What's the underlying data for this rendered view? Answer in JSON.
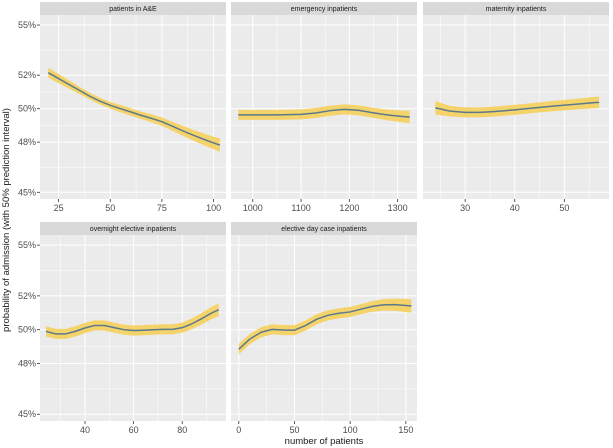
{
  "chart_data": {
    "type": "line",
    "xlabel": "number of patients",
    "ylabel": "probability of admission (with 50% prediction interval)",
    "ylim": [
      0.446,
      0.556
    ],
    "yticks": [
      0.45,
      0.48,
      0.5,
      0.52,
      0.55
    ],
    "ytick_labels": [
      "45%",
      "48%",
      "50%",
      "52%",
      "55%"
    ],
    "line_color": "#5b7a8c",
    "band_color": "#f5d36b",
    "panel_bg": "#ebebeb",
    "strip_bg": "#d9d9d9",
    "grid_color": "#ffffff",
    "panels": [
      {
        "title": "patients in A&E",
        "xlim": [
          16,
          106
        ],
        "xticks": [
          25,
          50,
          75,
          100
        ],
        "x": [
          20,
          25,
          30,
          35,
          40,
          45,
          50,
          55,
          60,
          65,
          70,
          75,
          80,
          85,
          90,
          95,
          100,
          103
        ],
        "y": [
          0.5215,
          0.518,
          0.5145,
          0.511,
          0.5075,
          0.5045,
          0.502,
          0.5,
          0.498,
          0.496,
          0.4942,
          0.4922,
          0.4895,
          0.4868,
          0.4842,
          0.4818,
          0.4795,
          0.4782
        ],
        "lower": [
          0.5185,
          0.5152,
          0.512,
          0.5088,
          0.5055,
          0.5025,
          0.5,
          0.4978,
          0.4958,
          0.4938,
          0.4918,
          0.4897,
          0.4868,
          0.4838,
          0.481,
          0.4783,
          0.4758,
          0.4742
        ],
        "upper": [
          0.5245,
          0.5208,
          0.517,
          0.5132,
          0.5095,
          0.5065,
          0.504,
          0.5022,
          0.5002,
          0.4982,
          0.4966,
          0.4947,
          0.4922,
          0.4898,
          0.4874,
          0.4853,
          0.4832,
          0.4822
        ]
      },
      {
        "title": "emergency inpatients",
        "xlim": [
          955,
          1340
        ],
        "xticks": [
          1000,
          1100,
          1200,
          1300
        ],
        "x": [
          970,
          1000,
          1050,
          1100,
          1130,
          1160,
          1190,
          1220,
          1250,
          1280,
          1310,
          1325
        ],
        "y": [
          0.4963,
          0.4963,
          0.4963,
          0.4966,
          0.4974,
          0.4988,
          0.4996,
          0.499,
          0.4975,
          0.4962,
          0.4953,
          0.495
        ],
        "lower": [
          0.4933,
          0.4933,
          0.4933,
          0.4936,
          0.4944,
          0.4958,
          0.4966,
          0.496,
          0.4945,
          0.493,
          0.4918,
          0.4912
        ],
        "upper": [
          0.4993,
          0.4993,
          0.4993,
          0.4996,
          0.5004,
          0.5018,
          0.5026,
          0.502,
          0.5005,
          0.4994,
          0.4988,
          0.4988
        ]
      },
      {
        "title": "maternity inpatients",
        "xlim": [
          21.5,
          59
        ],
        "xticks": [
          30,
          40,
          50
        ],
        "x": [
          24,
          27,
          30,
          33,
          36,
          40,
          44,
          48,
          52,
          56,
          57
        ],
        "y": [
          0.5005,
          0.4985,
          0.4978,
          0.4978,
          0.4983,
          0.4993,
          0.5005,
          0.5016,
          0.5026,
          0.5036,
          0.5038
        ],
        "lower": [
          0.4965,
          0.4953,
          0.4948,
          0.4948,
          0.4953,
          0.4963,
          0.4975,
          0.4985,
          0.4994,
          0.5002,
          0.5003
        ],
        "upper": [
          0.5045,
          0.5017,
          0.5008,
          0.5008,
          0.5013,
          0.5023,
          0.5035,
          0.5047,
          0.5058,
          0.507,
          0.5073
        ]
      },
      {
        "title": "overnight elective inpatients",
        "xlim": [
          21.5,
          98
        ],
        "xticks": [
          40,
          60,
          80
        ],
        "x": [
          24,
          28,
          32,
          36,
          40,
          44,
          48,
          52,
          56,
          60,
          64,
          68,
          72,
          76,
          80,
          84,
          88,
          92,
          95
        ],
        "y": [
          0.499,
          0.4975,
          0.4975,
          0.499,
          0.501,
          0.5025,
          0.5025,
          0.5012,
          0.5,
          0.4995,
          0.4997,
          0.5,
          0.5002,
          0.5002,
          0.5012,
          0.5035,
          0.5065,
          0.5098,
          0.5118
        ],
        "lower": [
          0.496,
          0.4945,
          0.4945,
          0.496,
          0.498,
          0.4995,
          0.4995,
          0.4982,
          0.497,
          0.4965,
          0.4967,
          0.497,
          0.4972,
          0.4972,
          0.4982,
          0.5003,
          0.5031,
          0.5062,
          0.508
        ],
        "upper": [
          0.502,
          0.5005,
          0.5005,
          0.502,
          0.504,
          0.5055,
          0.5055,
          0.5042,
          0.503,
          0.5025,
          0.5027,
          0.503,
          0.5032,
          0.5032,
          0.5042,
          0.5067,
          0.5099,
          0.5134,
          0.5156
        ]
      },
      {
        "title": "elective day case inpatients",
        "xlim": [
          -7,
          160
        ],
        "xticks": [
          0,
          50,
          100,
          150
        ],
        "x": [
          0,
          10,
          20,
          30,
          40,
          50,
          60,
          70,
          80,
          90,
          100,
          110,
          120,
          130,
          140,
          150,
          155
        ],
        "y": [
          0.4885,
          0.4945,
          0.4985,
          0.5002,
          0.4998,
          0.4997,
          0.5025,
          0.5062,
          0.5085,
          0.5097,
          0.5105,
          0.5122,
          0.5138,
          0.5147,
          0.5148,
          0.5143,
          0.514
        ],
        "lower": [
          0.4853,
          0.4915,
          0.4955,
          0.4972,
          0.4968,
          0.4967,
          0.4995,
          0.5032,
          0.5055,
          0.5067,
          0.5075,
          0.5092,
          0.5106,
          0.5113,
          0.5112,
          0.5104,
          0.51
        ],
        "upper": [
          0.4917,
          0.4975,
          0.5015,
          0.5032,
          0.5028,
          0.5027,
          0.5055,
          0.5092,
          0.5115,
          0.5127,
          0.5135,
          0.5152,
          0.517,
          0.5181,
          0.5184,
          0.5182,
          0.518
        ]
      }
    ]
  }
}
